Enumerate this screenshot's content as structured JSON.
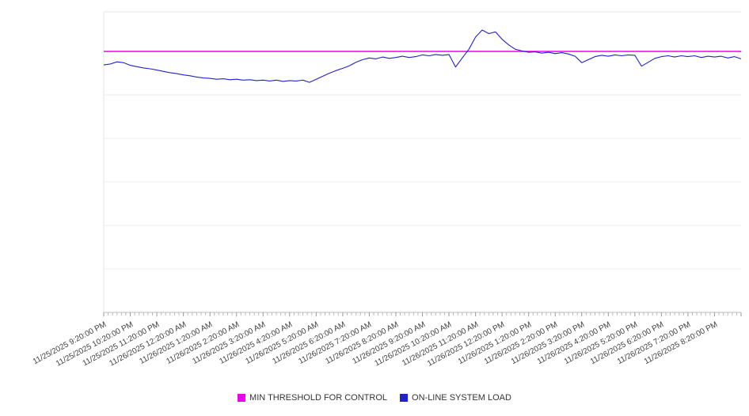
{
  "chart_data": {
    "type": "line",
    "title": "",
    "xlabel": "",
    "ylabel": "",
    "y_axis_labels_visible": false,
    "ylim": [
      0,
      69
    ],
    "gridline_values": [
      10,
      20,
      30,
      40,
      50,
      60
    ],
    "grid": "horizontal",
    "legend_position": "bottom",
    "x_tick_labels": [
      "11/25/2025 9:20:00 PM",
      "11/25/2025 10:20:00 PM",
      "11/25/2025 11:20:00 PM",
      "11/26/2025 12:20:00 AM",
      "11/26/2025 1:20:00 AM",
      "11/26/2025 2:20:00 AM",
      "11/26/2025 3:20:00 AM",
      "11/26/2025 4:20:00 AM",
      "11/26/2025 5:20:00 AM",
      "11/26/2025 6:20:00 AM",
      "11/26/2025 7:20:00 AM",
      "11/26/2025 8:20:00 AM",
      "11/26/2025 9:20:00 AM",
      "11/26/2025 10:20:00 AM",
      "11/26/2025 11:20:00 AM",
      "11/26/2025 12:20:00 PM",
      "11/26/2025 1:20:00 PM",
      "11/26/2025 2:20:00 PM",
      "11/26/2025 3:20:00 PM",
      "11/26/2025 4:20:00 PM",
      "11/26/2025 5:20:00 PM",
      "11/26/2025 6:20:00 PM",
      "11/26/2025 7:20:00 PM",
      "11/26/2025 8:20:00 PM"
    ],
    "series": [
      {
        "name": "MIN THRESHOLD FOR CONTROL",
        "type": "constant-threshold",
        "color": "#ee00ee",
        "value": 60
      },
      {
        "name": "ON-LINE SYSTEM LOAD",
        "type": "line",
        "color": "#2222cc",
        "points_per_hour": 4,
        "values": [
          56.9,
          57.1,
          57.6,
          57.4,
          56.8,
          56.5,
          56.2,
          56.0,
          55.7,
          55.4,
          55.1,
          54.9,
          54.6,
          54.4,
          54.1,
          53.9,
          53.8,
          53.6,
          53.7,
          53.5,
          53.6,
          53.4,
          53.5,
          53.3,
          53.4,
          53.2,
          53.4,
          53.1,
          53.3,
          53.2,
          53.4,
          52.9,
          53.6,
          54.3,
          55.0,
          55.6,
          56.1,
          56.7,
          57.5,
          58.1,
          58.5,
          58.3,
          58.7,
          58.4,
          58.6,
          58.9,
          58.6,
          58.8,
          59.2,
          59.0,
          59.3,
          59.1,
          59.3,
          56.4,
          58.5,
          60.5,
          63.3,
          64.9,
          64.1,
          64.5,
          62.8,
          61.5,
          60.5,
          60.1,
          59.8,
          59.9,
          59.6,
          59.8,
          59.5,
          59.7,
          59.4,
          58.9,
          57.4,
          58.1,
          58.8,
          59.1,
          58.9,
          59.2,
          59.0,
          59.2,
          59.1,
          56.6,
          57.5,
          58.4,
          58.8,
          59.0,
          58.7,
          59.0,
          58.8,
          59.0,
          58.6,
          58.9,
          58.7,
          58.9,
          58.5,
          58.8,
          58.3
        ]
      }
    ],
    "note_estimation": "y values estimated from unlabeled gridlines (10 units per gridline)"
  },
  "legend": {
    "items": [
      {
        "label": "MIN THRESHOLD FOR CONTROL",
        "color": "#ee00ee"
      },
      {
        "label": "ON-LINE SYSTEM LOAD",
        "color": "#2222cc"
      }
    ]
  },
  "colors": {
    "gridline": "#ececec",
    "axis": "#bbbbbb",
    "minor_tick": "#bbbbbb",
    "hour_tick": "#999999",
    "plot_border": "#e4e4e4",
    "label_text": "#3f3f3f"
  }
}
